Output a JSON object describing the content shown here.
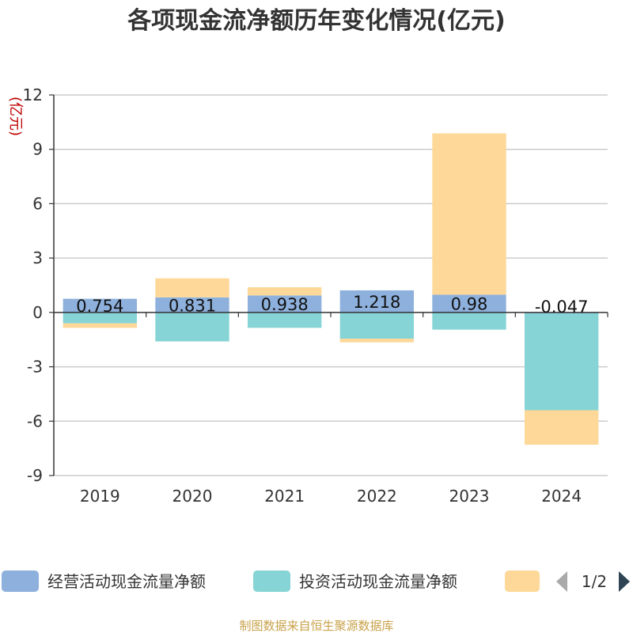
{
  "chart_data": {
    "type": "bar",
    "stacked": true,
    "title": "各项现金流净额历年变化情况(亿元)",
    "ylabel": "(亿元)",
    "categories": [
      "2019",
      "2020",
      "2021",
      "2022",
      "2023",
      "2024"
    ],
    "ylim": [
      -9,
      12
    ],
    "yticks": [
      12,
      9,
      6,
      3,
      0,
      -3,
      -6,
      -9
    ],
    "grid": true,
    "series": [
      {
        "name": "经营活动现金流量净额",
        "color": "#8eb0dc",
        "values": [
          0.754,
          0.831,
          0.938,
          1.218,
          0.98,
          -0.047
        ]
      },
      {
        "name": "投资活动现金流量净额",
        "color": "#86d4d6",
        "values": [
          -0.6,
          -1.6,
          -0.85,
          -1.45,
          -0.95,
          -5.35
        ]
      },
      {
        "name": "",
        "color": "#fed898",
        "values": [
          -0.25,
          1.05,
          0.45,
          -0.2,
          8.9,
          -1.9
        ]
      }
    ],
    "data_labels": [
      "0.754",
      "0.831",
      "0.938",
      "1.218",
      "0.98",
      "-0.047"
    ],
    "legend_position": "bottom",
    "legend_page": "1/2"
  },
  "source": "制图数据来自恒生聚源数据库"
}
